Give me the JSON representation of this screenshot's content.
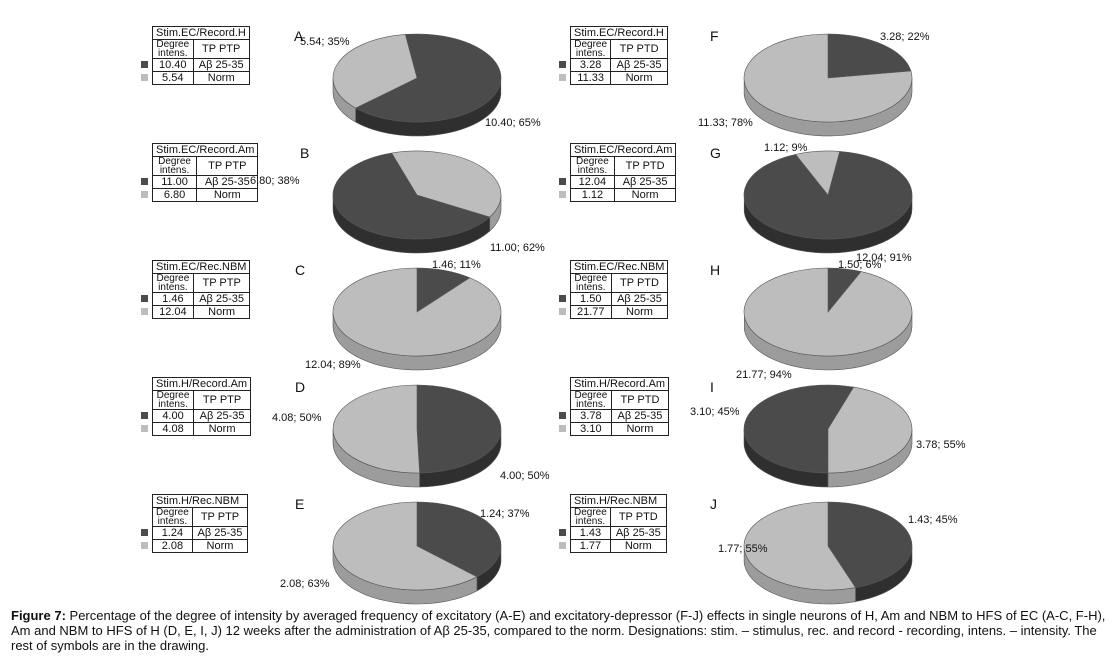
{
  "colors": {
    "dark": "#4b4b4b",
    "light": "#bdbdbd",
    "dark_side": "#2f2f2f",
    "light_side": "#9c9c9c"
  },
  "legend_header": {
    "degree": "Degree",
    "intens": "intens."
  },
  "chart_data": [
    {
      "type": "pie",
      "panel": "A",
      "table_title": "Stim.EC/Record.H",
      "table_subtitle": "TP PTP",
      "series": [
        {
          "name": "Aβ 25-35",
          "value": 10.4,
          "percent": 65,
          "label": "10.40; 65%",
          "legend_value": "10.40",
          "color": "dark"
        },
        {
          "name": "Norm",
          "value": 5.54,
          "percent": 35,
          "label": "5.54; 35%",
          "legend_value": "5.54",
          "color": "light"
        }
      ]
    },
    {
      "type": "pie",
      "panel": "B",
      "table_title": "Stim.EC/Record.Am",
      "table_subtitle": "TP PTP",
      "series": [
        {
          "name": "Aβ 25-35",
          "value": 11.0,
          "percent": 62,
          "label": "11.00; 62%",
          "legend_value": "11.00",
          "color": "dark"
        },
        {
          "name": "Norm",
          "value": 6.8,
          "percent": 38,
          "label": "6.80; 38%",
          "legend_value": "6.80",
          "color": "light"
        }
      ]
    },
    {
      "type": "pie",
      "panel": "C",
      "table_title": "Stim.EC/Rec.NBM",
      "table_subtitle": "TP PTP",
      "series": [
        {
          "name": "Aβ 25-35",
          "value": 1.46,
          "percent": 11,
          "label": "1.46; 11%",
          "legend_value": "1.46",
          "color": "dark"
        },
        {
          "name": "Norm",
          "value": 12.04,
          "percent": 89,
          "label": "12.04; 89%",
          "legend_value": "12.04",
          "color": "light"
        }
      ]
    },
    {
      "type": "pie",
      "panel": "D",
      "table_title": "Stim.H/Record.Am",
      "table_subtitle": "TP PTP",
      "series": [
        {
          "name": "Aβ 25-35",
          "value": 4.0,
          "percent": 50,
          "label": "4.00; 50%",
          "legend_value": "4.00",
          "color": "dark"
        },
        {
          "name": "Norm",
          "value": 4.08,
          "percent": 50,
          "label": "4.08; 50%",
          "legend_value": "4.08",
          "color": "light"
        }
      ]
    },
    {
      "type": "pie",
      "panel": "E",
      "table_title": "Stim.H/Rec.NBM",
      "table_subtitle": "TP PTP",
      "series": [
        {
          "name": "Aβ 25-35",
          "value": 1.24,
          "percent": 37,
          "label": "1.24; 37%",
          "legend_value": "1.24",
          "color": "dark"
        },
        {
          "name": "Norm",
          "value": 2.08,
          "percent": 63,
          "label": "2.08; 63%",
          "legend_value": "2.08",
          "color": "light"
        }
      ]
    },
    {
      "type": "pie",
      "panel": "F",
      "table_title": "Stim.EC/Record.H",
      "table_subtitle": "TP PTD",
      "series": [
        {
          "name": "Aβ 25-35",
          "value": 3.28,
          "percent": 22,
          "label": "3.28; 22%",
          "legend_value": "3.28",
          "color": "dark"
        },
        {
          "name": "Norm",
          "value": 11.33,
          "percent": 78,
          "label": "11.33; 78%",
          "legend_value": "11.33",
          "color": "light"
        }
      ]
    },
    {
      "type": "pie",
      "panel": "G",
      "table_title": "Stim.EC/Record.Am",
      "table_subtitle": "TP PTD",
      "series": [
        {
          "name": "Aβ 25-35",
          "value": 12.04,
          "percent": 91,
          "label": "12.04; 91%",
          "legend_value": "12.04",
          "color": "dark"
        },
        {
          "name": "Norm",
          "value": 1.12,
          "percent": 9,
          "label": "1.12; 9%",
          "legend_value": "1.12",
          "color": "light"
        }
      ]
    },
    {
      "type": "pie",
      "panel": "H",
      "table_title": "Stim.EC/Rec.NBM",
      "table_subtitle": "TP PTD",
      "series": [
        {
          "name": "Aβ 25-35",
          "value": 1.5,
          "percent": 6,
          "label": "1.50; 6%",
          "legend_value": "1.50",
          "color": "dark"
        },
        {
          "name": "Norm",
          "value": 21.77,
          "percent": 94,
          "label": "21.77; 94%",
          "legend_value": "21.77",
          "color": "light"
        }
      ]
    },
    {
      "type": "pie",
      "panel": "I",
      "table_title": "Stim.H/Record.Am",
      "table_subtitle": "TP PTD",
      "series": [
        {
          "name": "Aβ 25-35",
          "value": 3.78,
          "percent": 55,
          "label": "3.78; 55%",
          "legend_value": "3.78",
          "color": "dark"
        },
        {
          "name": "Norm",
          "value": 3.1,
          "percent": 45,
          "label": "3.10; 45%",
          "legend_value": "3.10",
          "color": "light"
        }
      ]
    },
    {
      "type": "pie",
      "panel": "J",
      "table_title": "Stim.H/Rec.NBM",
      "table_subtitle": "TP PTD",
      "series": [
        {
          "name": "Aβ 25-35",
          "value": 1.43,
          "percent": 45,
          "label": "1.43; 45%",
          "legend_value": "1.43",
          "color": "dark"
        },
        {
          "name": "Norm",
          "value": 1.77,
          "percent": 55,
          "label": "1.77; 55%",
          "legend_value": "1.77",
          "color": "light"
        }
      ]
    }
  ],
  "caption": {
    "bold": "Figure 7:",
    "text": " Percentage of the degree of intensity by averaged frequency of excitatory (A-E) and excitatory-depressor (F-J) effects in single neurons of H, Am and NBM to HFS of EC (A-C, F-H), Am and NBM to HFS of H (D, E, I, J) 12 weeks after the administration of Aβ 25-35, compared to the norm. Designations: stim. – stimulus, rec. and record - recording, intens. – intensity. The rest of symbols are in the drawing."
  }
}
